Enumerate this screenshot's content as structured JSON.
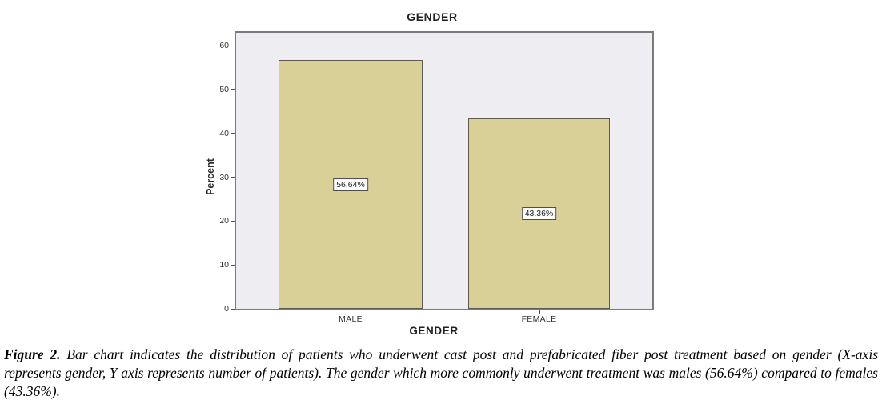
{
  "chart_data": {
    "type": "bar",
    "title": "GENDER",
    "xlabel": "GENDER",
    "ylabel": "Percent",
    "categories": [
      "MALE",
      "FEMALE"
    ],
    "values": [
      56.64,
      43.36
    ],
    "value_labels": [
      "56.64%",
      "43.36%"
    ],
    "yticks": [
      0,
      10,
      20,
      30,
      40,
      50,
      60
    ],
    "ylim": [
      0,
      60
    ],
    "grid": false,
    "legend": "none"
  },
  "colors": {
    "plot_bg": "#ededf2",
    "bar_fill": "#d8d097",
    "bar_border": "#5c5c50",
    "frame_border": "#7b7b7b",
    "tick": "#555555",
    "label_text": "#333333",
    "title_text": "#1f1f1f",
    "value_box_bg": "#fcfcfc",
    "value_box_border": "#4d4d4d"
  },
  "caption": {
    "label": "Figure 2.",
    "text": "Bar chart indicates the distribution of patients who underwent cast post and prefabricated fiber post treatment based on gender (X-axis represents gender, Y axis represents number of patients). The gender which more commonly underwent treatment was males (56.64%) compared to females (43.36%)."
  }
}
